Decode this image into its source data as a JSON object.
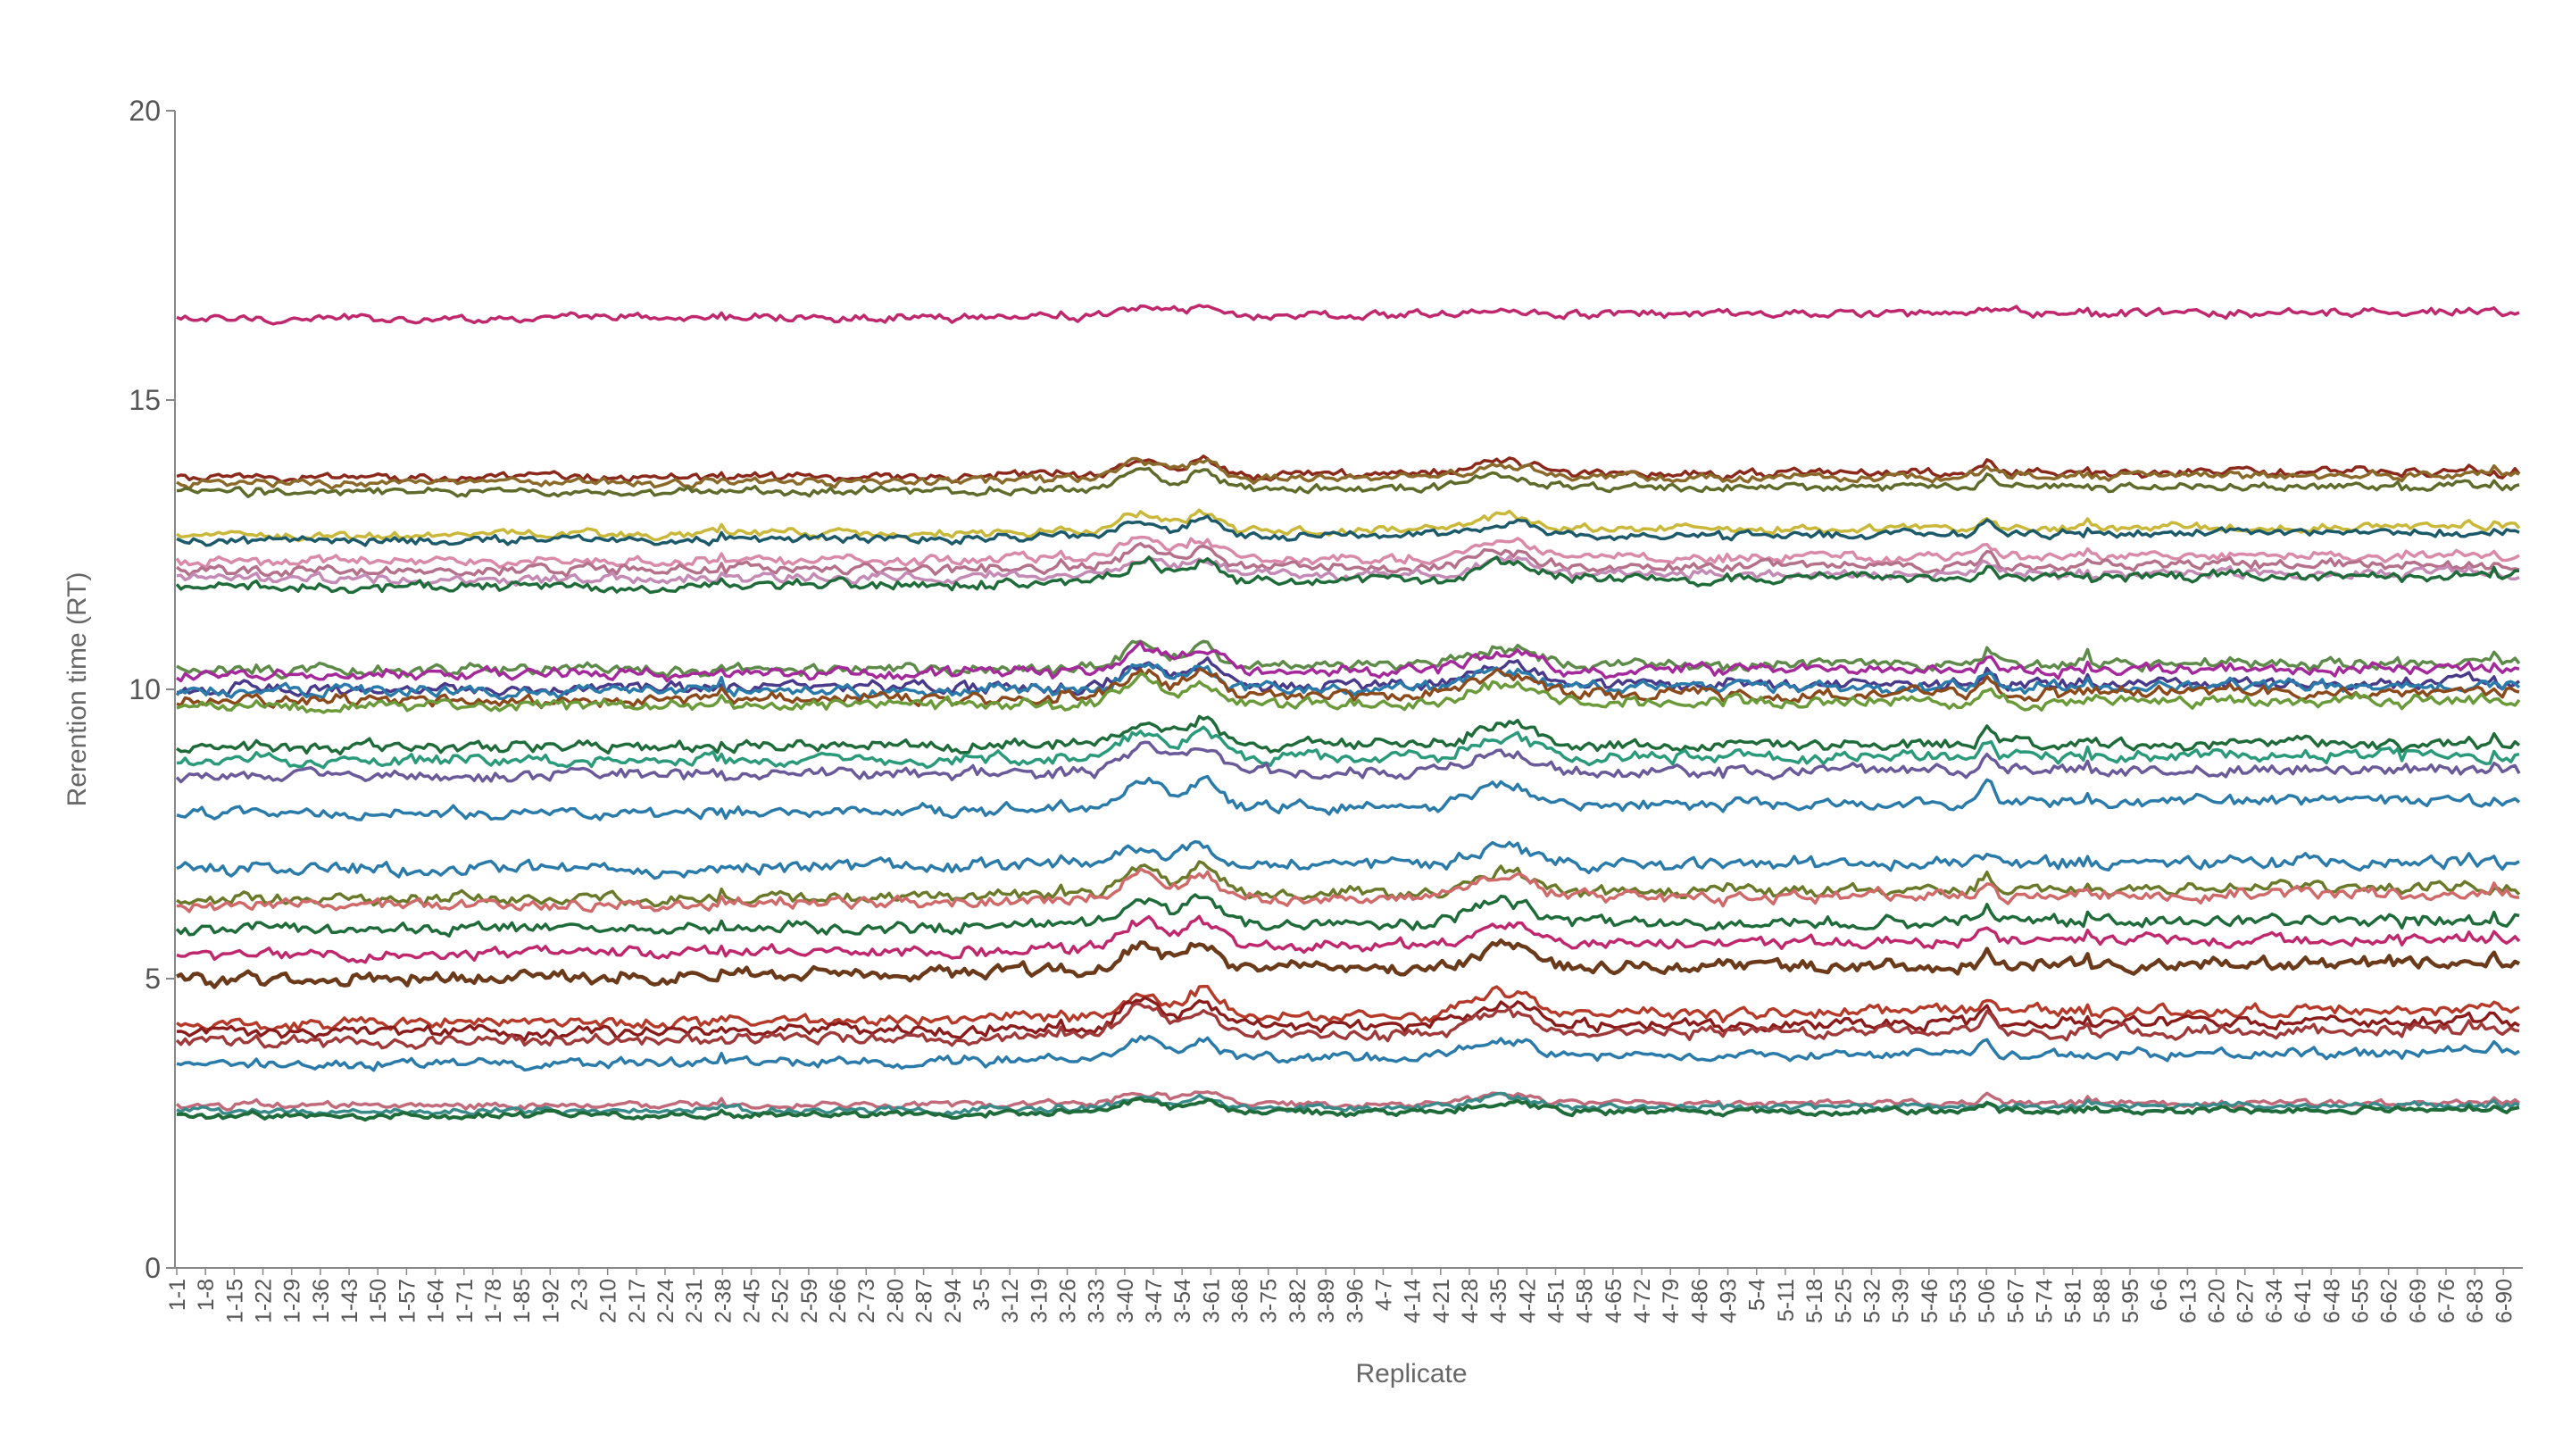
{
  "chart_data": {
    "type": "line",
    "title": "",
    "xlabel": "Replicate",
    "ylabel": "Rerention time (RT)",
    "ylim": [
      0,
      20
    ],
    "yticks": [
      0,
      5,
      10,
      15,
      20
    ],
    "grid": false,
    "legend": "none",
    "x_tick_labels": [
      "1-1",
      "1-8",
      "1-15",
      "1-22",
      "1-29",
      "1-36",
      "1-43",
      "1-50",
      "1-57",
      "1-64",
      "1-71",
      "1-78",
      "1-85",
      "1-92",
      "2-3",
      "2-10",
      "2-17",
      "2-24",
      "2-31",
      "2-38",
      "2-45",
      "2-52",
      "2-59",
      "2-66",
      "2-73",
      "2-80",
      "2-87",
      "2-94",
      "3-5",
      "3-12",
      "3-19",
      "3-26",
      "3-33",
      "3-40",
      "3-47",
      "3-54",
      "3-61",
      "3-68",
      "3-75",
      "3-82",
      "3-89",
      "3-96",
      "4-7",
      "4-14",
      "4-21",
      "4-28",
      "4-35",
      "4-42",
      "4-51",
      "4-58",
      "4-65",
      "4-72",
      "4-79",
      "4-86",
      "4-93",
      "5-4",
      "5-11",
      "5-18",
      "5-25",
      "5-32",
      "5-39",
      "5-46",
      "5-53",
      "5-06",
      "5-67",
      "5-74",
      "5-81",
      "5-88",
      "5-95",
      "6-6",
      "6-13",
      "6-20",
      "6-27",
      "6-34",
      "6-41",
      "6-48",
      "6-55",
      "6-62",
      "6-69",
      "6-76",
      "6-83",
      "6-90"
    ],
    "n_points": 560,
    "events": [
      {
        "at": 0.335,
        "jump": 0.25
      },
      {
        "at": 0.415,
        "jump": 0.0
      },
      {
        "at": 0.528,
        "jump": 0.0
      },
      {
        "at": 0.585,
        "jump": 0.0
      }
    ],
    "bumps": [
      {
        "center": 0.412,
        "width": 0.012,
        "amp": 1.0
      },
      {
        "center": 0.438,
        "width": 0.01,
        "amp": 1.0
      },
      {
        "center": 0.566,
        "width": 0.018,
        "amp": 0.8
      },
      {
        "center": 0.773,
        "width": 0.004,
        "amp": 0.6
      }
    ],
    "series": [
      {
        "color": "#c0286e",
        "start": 16.4,
        "end": 16.5,
        "noise": 0.05,
        "bump": 0.15,
        "width": 3.5
      },
      {
        "color": "#8b2a1c",
        "start": 13.65,
        "end": 13.75,
        "noise": 0.05,
        "bump": 0.3,
        "width": 3.5
      },
      {
        "color": "#8a6a2a",
        "start": 13.55,
        "end": 13.7,
        "noise": 0.05,
        "bump": 0.3,
        "width": 3.5
      },
      {
        "color": "#5e6b2a",
        "start": 13.4,
        "end": 13.5,
        "noise": 0.05,
        "bump": 0.3,
        "width": 3.5
      },
      {
        "color": "#c9b83a",
        "start": 12.65,
        "end": 12.8,
        "noise": 0.05,
        "bump": 0.3,
        "width": 3.5
      },
      {
        "color": "#1c5a6a",
        "start": 12.55,
        "end": 12.7,
        "noise": 0.05,
        "bump": 0.3,
        "width": 3.5
      },
      {
        "color": "#d98aa8",
        "start": 12.2,
        "end": 12.3,
        "noise": 0.06,
        "bump": 0.35,
        "width": 3.5
      },
      {
        "color": "#b5708a",
        "start": 12.05,
        "end": 12.15,
        "noise": 0.06,
        "bump": 0.35,
        "width": 3.5
      },
      {
        "color": "#c28ab5",
        "start": 11.9,
        "end": 12.0,
        "noise": 0.06,
        "bump": 0.35,
        "width": 3.5
      },
      {
        "color": "#1f6b3a",
        "start": 11.75,
        "end": 11.95,
        "noise": 0.06,
        "bump": 0.35,
        "width": 3.5
      },
      {
        "color": "#5e8a4a",
        "start": 10.3,
        "end": 10.45,
        "noise": 0.07,
        "bump": 0.4,
        "width": 3.5
      },
      {
        "color": "#a42a9b",
        "start": 10.25,
        "end": 10.35,
        "noise": 0.07,
        "bump": 0.4,
        "width": 3.5
      },
      {
        "color": "#4a3a8a",
        "start": 10.0,
        "end": 10.1,
        "noise": 0.07,
        "bump": 0.4,
        "width": 3.5
      },
      {
        "color": "#2a7aaa",
        "start": 9.95,
        "end": 10.05,
        "noise": 0.07,
        "bump": 0.4,
        "width": 3.5
      },
      {
        "color": "#8b4a1c",
        "start": 9.8,
        "end": 9.95,
        "noise": 0.07,
        "bump": 0.4,
        "width": 3.5
      },
      {
        "color": "#6a9a3a",
        "start": 9.7,
        "end": 9.8,
        "noise": 0.07,
        "bump": 0.4,
        "width": 3.5
      },
      {
        "color": "#1f6b3a",
        "start": 9.0,
        "end": 9.05,
        "noise": 0.07,
        "bump": 0.45,
        "width": 3.5
      },
      {
        "color": "#2a9a7a",
        "start": 8.75,
        "end": 8.85,
        "noise": 0.07,
        "bump": 0.45,
        "width": 3.5
      },
      {
        "color": "#6a5a9a",
        "start": 8.5,
        "end": 8.6,
        "noise": 0.07,
        "bump": 0.45,
        "width": 3.5
      },
      {
        "color": "#2a7aaa",
        "start": 7.85,
        "end": 8.05,
        "noise": 0.07,
        "bump": 0.45,
        "width": 3.5
      },
      {
        "color": "#2a7aaa",
        "start": 6.9,
        "end": 7.0,
        "noise": 0.08,
        "bump": 0.35,
        "width": 3.5
      },
      {
        "color": "#6a7a2a",
        "start": 6.35,
        "end": 6.55,
        "noise": 0.07,
        "bump": 0.45,
        "width": 3.5
      },
      {
        "color": "#d06a6a",
        "start": 6.25,
        "end": 6.45,
        "noise": 0.07,
        "bump": 0.45,
        "width": 3.5
      },
      {
        "color": "#1f6b3a",
        "start": 5.85,
        "end": 6.0,
        "noise": 0.07,
        "bump": 0.45,
        "width": 3.5
      },
      {
        "color": "#c0286e",
        "start": 5.4,
        "end": 5.65,
        "noise": 0.07,
        "bump": 0.45,
        "width": 3.5
      },
      {
        "color": "#6b3a1a",
        "start": 5.0,
        "end": 5.25,
        "noise": 0.08,
        "bump": 0.45,
        "width": 4.5
      },
      {
        "color": "#b53a2a",
        "start": 4.2,
        "end": 4.45,
        "noise": 0.07,
        "bump": 0.45,
        "width": 3.5
      },
      {
        "color": "#8b1c1c",
        "start": 4.05,
        "end": 4.25,
        "noise": 0.07,
        "bump": 0.45,
        "width": 3.5
      },
      {
        "color": "#a03a3a",
        "start": 3.9,
        "end": 4.1,
        "noise": 0.07,
        "bump": 0.45,
        "width": 3.5
      },
      {
        "color": "#2a7aaa",
        "start": 3.5,
        "end": 3.7,
        "noise": 0.06,
        "bump": 0.35,
        "width": 3.5
      },
      {
        "color": "#c06a7a",
        "start": 2.8,
        "end": 2.85,
        "noise": 0.04,
        "bump": 0.2,
        "width": 3.5
      },
      {
        "color": "#3a8a8a",
        "start": 2.7,
        "end": 2.8,
        "noise": 0.04,
        "bump": 0.2,
        "width": 3.5
      },
      {
        "color": "#1f6b3a",
        "start": 2.62,
        "end": 2.72,
        "noise": 0.04,
        "bump": 0.2,
        "width": 4.0
      }
    ]
  }
}
